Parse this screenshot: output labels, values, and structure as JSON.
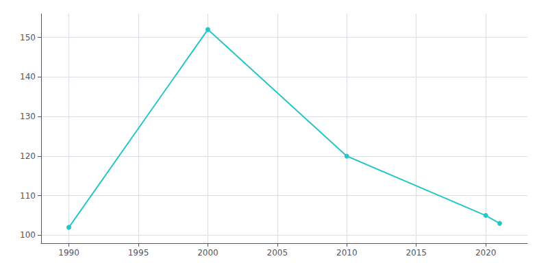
{
  "chart_data": {
    "type": "line",
    "x": [
      1990,
      2000,
      2010,
      2020,
      2021
    ],
    "values": [
      102,
      152,
      120,
      105,
      103
    ],
    "color": "#26c6c6",
    "marker": "circle",
    "xlim": [
      1988,
      2023
    ],
    "xticks": [
      1990,
      1995,
      2000,
      2005,
      2010,
      2015,
      2020
    ],
    "ylim": [
      98,
      156
    ],
    "yticks": [
      100,
      110,
      120,
      130,
      140,
      150
    ],
    "grid": true
  }
}
